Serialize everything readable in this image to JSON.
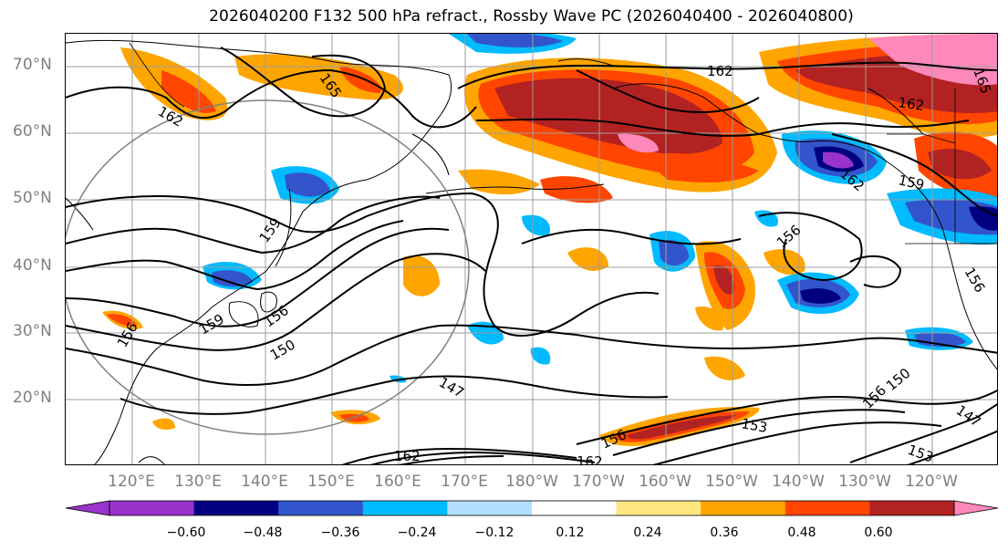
{
  "title": "2026040200 F132 500 hPa refract., Rossby Wave PC (2026040400 - 2026040800)",
  "lat_labels": [
    "70°N",
    "60°N",
    "50°N",
    "40°N",
    "30°N",
    "20°N"
  ],
  "lon_labels": [
    "120°E",
    "130°E",
    "140°E",
    "150°E",
    "160°E",
    "170°E",
    "180°W",
    "170°W",
    "160°W",
    "150°W",
    "140°W",
    "130°W",
    "120°W"
  ],
  "contour_labels": [
    "162",
    "165",
    "162",
    "162",
    "159",
    "159",
    "156",
    "156",
    "162",
    "159",
    "156",
    "150",
    "147",
    "153",
    "162",
    "156",
    "150",
    "156",
    "147",
    "153",
    "162",
    "156",
    "165"
  ],
  "colorbar": {
    "ticks": [
      "−0.60",
      "−0.48",
      "−0.36",
      "−0.24",
      "−0.12",
      "0.12",
      "0.24",
      "0.36",
      "0.48",
      "0.60"
    ],
    "colors": [
      "#9933cc",
      "#000080",
      "#3355cc",
      "#00bbff",
      "#b3e0ff",
      "#ffffff",
      "#ffe680",
      "#ffa500",
      "#ff4500",
      "#b22222",
      "#ff88bb"
    ]
  }
}
